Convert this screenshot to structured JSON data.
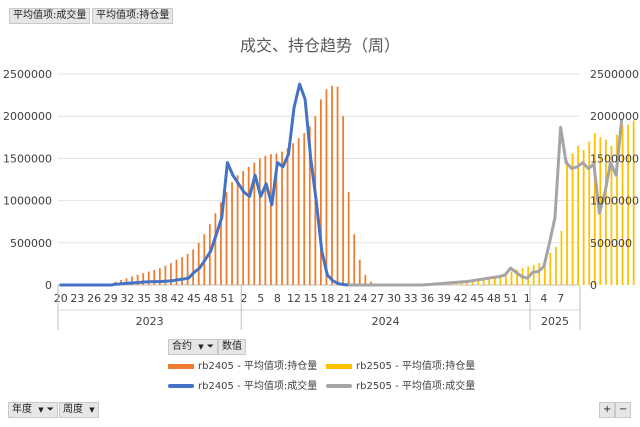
{
  "top_buttons": [
    "平均值项:成交量",
    "平均值项:持仓量"
  ],
  "legend_buttons": {
    "contract": "合约",
    "values": "数值"
  },
  "bottom_buttons": {
    "year": "年度",
    "week": "周度"
  },
  "zoom": {
    "plus": "+",
    "minus": "−"
  },
  "colors": {
    "rb2405_oi": "#ed7d31",
    "rb2505_oi": "#ffc000",
    "rb2405_vol": "#4472c4",
    "rb2505_vol": "#a5a5a5"
  },
  "chart_data": {
    "type": "bar+line",
    "title": "成交、持仓趋势（周）",
    "ylim_left": [
      0,
      2500000
    ],
    "ylim_right": [
      0,
      2500000
    ],
    "yticks": [
      "0",
      "500000",
      "1000000",
      "1500000",
      "2000000",
      "2500000"
    ],
    "x_tick_labels": [
      "20",
      "23",
      "26",
      "29",
      "32",
      "35",
      "38",
      "42",
      "45",
      "48",
      "51",
      "2",
      "5",
      "8",
      "12",
      "15",
      "18",
      "21",
      "24",
      "27",
      "30",
      "33",
      "36",
      "39",
      "42",
      "45",
      "48",
      "51",
      "1",
      "4",
      "7"
    ],
    "x_groups": [
      {
        "label": "2023",
        "weeks": 33
      },
      {
        "label": "2024",
        "weeks": 52
      },
      {
        "label": "2025",
        "weeks": 9
      }
    ],
    "grid": true,
    "legend_position": "bottom",
    "series": [
      {
        "name": "rb2405 - 平均值项:持仓量",
        "kind": "bar",
        "color": "#ed7d31",
        "start_index": 0,
        "values": [
          0,
          0,
          0,
          0,
          0,
          0,
          0,
          0,
          0,
          0,
          40000,
          60000,
          80000,
          100000,
          120000,
          140000,
          160000,
          180000,
          200000,
          230000,
          260000,
          300000,
          330000,
          370000,
          420000,
          500000,
          600000,
          720000,
          850000,
          980000,
          1100000,
          1220000,
          1300000,
          1350000,
          1400000,
          1450000,
          1500000,
          1530000,
          1550000,
          1560000,
          1580000,
          1620000,
          1680000,
          1740000,
          1800000,
          1880000,
          2000000,
          2200000,
          2320000,
          2360000,
          2350000,
          2000000,
          1100000,
          600000,
          300000,
          120000,
          40000,
          10000,
          0
        ]
      },
      {
        "name": "rb2505 - 平均值项:持仓量",
        "kind": "bar",
        "color": "#ffc000",
        "start_index": 52,
        "values": [
          0,
          0,
          0,
          0,
          0,
          0,
          0,
          0,
          0,
          0,
          0,
          0,
          0,
          0,
          0,
          0,
          0,
          0,
          5000,
          10000,
          20000,
          30000,
          40000,
          50000,
          60000,
          80000,
          100000,
          120000,
          140000,
          160000,
          180000,
          200000,
          220000,
          240000,
          260000,
          300000,
          380000,
          450000,
          640000,
          1480000,
          1560000,
          1650000,
          1600000,
          1700000,
          1800000,
          1750000,
          1720000,
          1650000,
          1780000,
          1900000,
          1900000,
          1950000
        ]
      },
      {
        "name": "rb2405 - 平均值项:成交量",
        "kind": "line",
        "color": "#4472c4",
        "start_index": 0,
        "values": [
          0,
          0,
          0,
          0,
          0,
          0,
          0,
          0,
          0,
          0,
          10000,
          15000,
          20000,
          25000,
          30000,
          35000,
          38000,
          40000,
          42000,
          45000,
          50000,
          60000,
          70000,
          80000,
          150000,
          200000,
          300000,
          400000,
          600000,
          800000,
          1450000,
          1300000,
          1200000,
          1100000,
          1050000,
          1300000,
          1050000,
          1200000,
          950000,
          1450000,
          1400000,
          1550000,
          2100000,
          2380000,
          2200000,
          1500000,
          1000000,
          400000,
          120000,
          50000,
          15000,
          5000,
          0
        ]
      },
      {
        "name": "rb2505 - 平均值项:成交量",
        "kind": "line",
        "color": "#a5a5a5",
        "start_index": 52,
        "values": [
          0,
          0,
          0,
          0,
          0,
          0,
          0,
          0,
          0,
          0,
          0,
          0,
          0,
          0,
          5000,
          10000,
          15000,
          20000,
          25000,
          30000,
          35000,
          40000,
          50000,
          60000,
          70000,
          80000,
          90000,
          100000,
          120000,
          200000,
          150000,
          100000,
          80000,
          150000,
          160000,
          220000,
          500000,
          800000,
          1870000,
          1450000,
          1380000,
          1400000,
          1450000,
          1380000,
          1430000,
          850000,
          1100000,
          1450000,
          1300000,
          1950000
        ]
      }
    ]
  }
}
